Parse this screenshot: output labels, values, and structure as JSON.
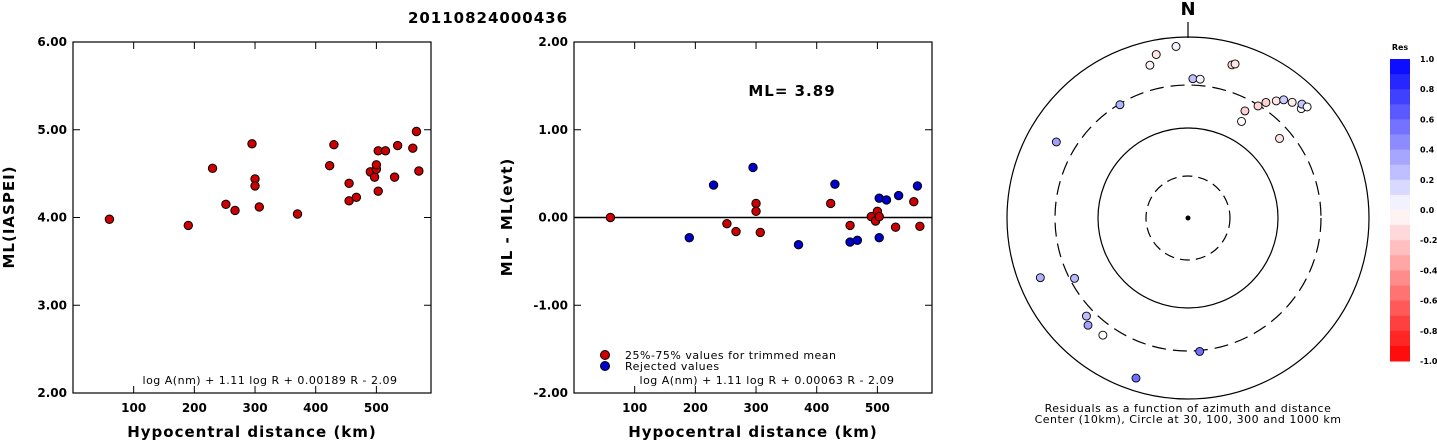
{
  "title": "20110824000436",
  "chart_data": [
    {
      "type": "scatter",
      "xlabel": "Hypocentral distance (km)",
      "ylabel": "ML(IASPEI)",
      "xlim": [
        0,
        590
      ],
      "ylim": [
        2.0,
        6.0
      ],
      "xticks": [
        "100",
        "200",
        "300",
        "400",
        "500"
      ],
      "yticks": [
        "2.00",
        "3.00",
        "4.00",
        "5.00",
        "6.00"
      ],
      "formula": "log A(nm) + 1.11 log R + 0.00189 R - 2.09",
      "points": [
        {
          "x": 60,
          "y": 3.98
        },
        {
          "x": 190,
          "y": 3.91
        },
        {
          "x": 230,
          "y": 4.56
        },
        {
          "x": 252,
          "y": 4.15
        },
        {
          "x": 267,
          "y": 4.08
        },
        {
          "x": 295,
          "y": 4.84
        },
        {
          "x": 300,
          "y": 4.44
        },
        {
          "x": 300,
          "y": 4.36
        },
        {
          "x": 307,
          "y": 4.12
        },
        {
          "x": 370,
          "y": 4.04
        },
        {
          "x": 423,
          "y": 4.59
        },
        {
          "x": 430,
          "y": 4.83
        },
        {
          "x": 455,
          "y": 4.39
        },
        {
          "x": 455,
          "y": 4.19
        },
        {
          "x": 467,
          "y": 4.23
        },
        {
          "x": 490,
          "y": 4.52
        },
        {
          "x": 497,
          "y": 4.46
        },
        {
          "x": 500,
          "y": 4.55
        },
        {
          "x": 500,
          "y": 4.6
        },
        {
          "x": 503,
          "y": 4.76
        },
        {
          "x": 503,
          "y": 4.3
        },
        {
          "x": 515,
          "y": 4.76
        },
        {
          "x": 530,
          "y": 4.46
        },
        {
          "x": 535,
          "y": 4.82
        },
        {
          "x": 560,
          "y": 4.79
        },
        {
          "x": 566,
          "y": 4.98
        },
        {
          "x": 570,
          "y": 4.53
        }
      ],
      "point_color": "#cc0000"
    },
    {
      "type": "scatter",
      "xlabel": "Hypocentral distance (km)",
      "ylabel": "ML - ML(evt)",
      "xlim": [
        0,
        590
      ],
      "ylim": [
        -2.0,
        2.0
      ],
      "xticks": [
        "100",
        "200",
        "300",
        "400",
        "500"
      ],
      "yticks": [
        "-2.00",
        "-1.00",
        "0.00",
        "1.00",
        "2.00"
      ],
      "annotation": "ML= 3.89",
      "formula": "log A(nm) + 1.11 log R + 0.00063 R - 2.09",
      "legend": [
        {
          "label": "25%-75% values for trimmed mean",
          "color": "#cc0000"
        },
        {
          "label": "Rejected values",
          "color": "#0000cc"
        }
      ],
      "series": [
        {
          "name": "25%-75% values for trimmed mean",
          "color": "#cc0000",
          "points": [
            {
              "x": 60,
              "y": 0.0
            },
            {
              "x": 252,
              "y": -0.07
            },
            {
              "x": 267,
              "y": -0.16
            },
            {
              "x": 300,
              "y": 0.16
            },
            {
              "x": 300,
              "y": 0.07
            },
            {
              "x": 307,
              "y": -0.17
            },
            {
              "x": 423,
              "y": 0.16
            },
            {
              "x": 455,
              "y": -0.09
            },
            {
              "x": 490,
              "y": 0.01
            },
            {
              "x": 497,
              "y": -0.04
            },
            {
              "x": 500,
              "y": 0.07
            },
            {
              "x": 503,
              "y": 0.01
            },
            {
              "x": 530,
              "y": -0.11
            },
            {
              "x": 560,
              "y": 0.18
            },
            {
              "x": 570,
              "y": -0.1
            }
          ]
        },
        {
          "name": "Rejected values",
          "color": "#0000cc",
          "points": [
            {
              "x": 190,
              "y": -0.23
            },
            {
              "x": 230,
              "y": 0.37
            },
            {
              "x": 295,
              "y": 0.57
            },
            {
              "x": 370,
              "y": -0.31
            },
            {
              "x": 430,
              "y": 0.38
            },
            {
              "x": 455,
              "y": -0.28
            },
            {
              "x": 467,
              "y": -0.26
            },
            {
              "x": 503,
              "y": -0.23
            },
            {
              "x": 503,
              "y": 0.22
            },
            {
              "x": 515,
              "y": 0.2
            },
            {
              "x": 535,
              "y": 0.25
            },
            {
              "x": 566,
              "y": 0.36
            }
          ]
        }
      ]
    },
    {
      "type": "polar-scatter",
      "north_label": "N",
      "caption_line1": "Residuals as a function of azimuth and distance",
      "caption_line2": "Center (10km), Circle at 30, 100, 300 and 1000 km",
      "colorbar_title": "Res",
      "colorbar_ticks": [
        "1.0",
        "0.8",
        "0.6",
        "0.4",
        "0.2",
        "0.0",
        "-0.2",
        "-0.4",
        "-0.6",
        "-0.8",
        "-1.0"
      ],
      "stations": [
        {
          "az": -31,
          "r": 0.73,
          "res": 0.3
        },
        {
          "az": -14,
          "r": 0.87,
          "res": -0.05
        },
        {
          "az": -11,
          "r": 0.92,
          "res": -0.1
        },
        {
          "az": -4,
          "r": 0.95,
          "res": 0.05
        },
        {
          "az": 2,
          "r": 0.77,
          "res": 0.25
        },
        {
          "az": 5,
          "r": 0.77,
          "res": 0.05
        },
        {
          "az": 16,
          "r": 0.88,
          "res": -0.16
        },
        {
          "az": 17,
          "r": 0.89,
          "res": -0.1
        },
        {
          "az": 28,
          "r": 0.67,
          "res": -0.18
        },
        {
          "az": 32,
          "r": 0.73,
          "res": -0.16
        },
        {
          "az": 34,
          "r": 0.77,
          "res": -0.18
        },
        {
          "az": 37,
          "r": 0.81,
          "res": -0.1
        },
        {
          "az": 39,
          "r": 0.84,
          "res": 0.2
        },
        {
          "az": 42,
          "r": 0.86,
          "res": -0.07
        },
        {
          "az": 46,
          "r": 0.87,
          "res": 0.01
        },
        {
          "az": 45,
          "r": 0.89,
          "res": 0.23
        },
        {
          "az": 47,
          "r": 0.9,
          "res": 0.02
        },
        {
          "az": 49,
          "r": 0.67,
          "res": -0.11
        },
        {
          "az": 29,
          "r": 0.61,
          "res": 0.0
        },
        {
          "az": -60,
          "r": 0.84,
          "res": 0.38
        },
        {
          "az": -112,
          "r": 0.88,
          "res": 0.31
        },
        {
          "az": -118,
          "r": 0.71,
          "res": 0.28
        },
        {
          "az": -134,
          "r": 0.78,
          "res": 0.26
        },
        {
          "az": -137,
          "r": 0.81,
          "res": 0.37
        },
        {
          "az": -144,
          "r": 0.8,
          "res": 0.0
        },
        {
          "az": -162,
          "r": 0.93,
          "res": 0.57
        },
        {
          "az": 175,
          "r": 0.74,
          "res": 0.57
        }
      ]
    }
  ]
}
